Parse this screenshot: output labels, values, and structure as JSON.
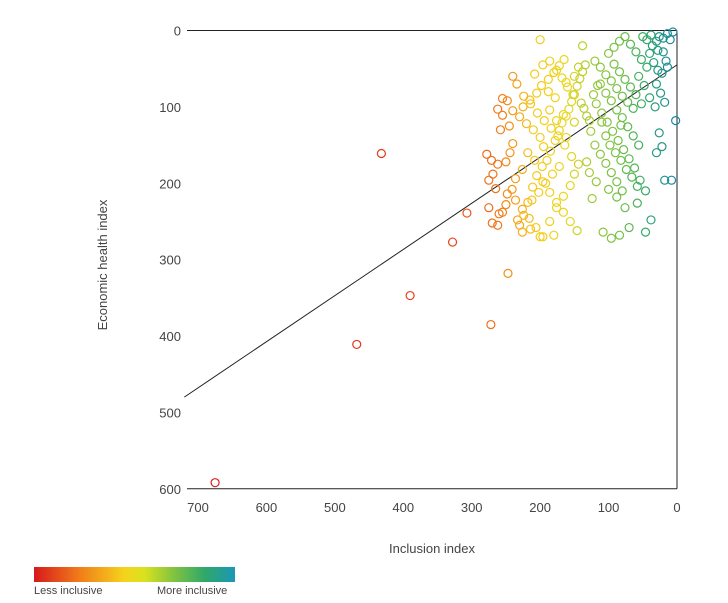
{
  "chart_data": {
    "type": "scatter",
    "title": "",
    "xlabel": "Inclusion index",
    "ylabel": "Economic health index",
    "xlim": [
      700,
      0
    ],
    "ylim": [
      0,
      600
    ],
    "x_ticks": [
      "700",
      "600",
      "500",
      "400",
      "300",
      "200",
      "100",
      "0"
    ],
    "y_ticks": [
      "0",
      "100",
      "200",
      "300",
      "400",
      "500",
      "600"
    ],
    "trend_line": {
      "x": [
        720,
        0
      ],
      "y": [
        480,
        45
      ]
    },
    "color_scale": {
      "low_label": "Less inclusive",
      "high_label": "More inclusive",
      "colors": [
        "#d7191c",
        "#f07a1a",
        "#f5d31b",
        "#d9e21f",
        "#7fc241",
        "#2fa86a",
        "#1a97b7"
      ]
    },
    "points": [
      [
        675,
        592
      ],
      [
        468,
        411
      ],
      [
        390,
        347
      ],
      [
        432,
        161
      ],
      [
        272,
        385
      ],
      [
        247,
        318
      ],
      [
        328,
        277
      ],
      [
        307,
        239
      ],
      [
        270,
        252
      ],
      [
        262,
        255
      ],
      [
        255,
        238
      ],
      [
        248,
        214
      ],
      [
        265,
        207
      ],
      [
        275,
        196
      ],
      [
        269,
        188
      ],
      [
        262,
        175
      ],
      [
        271,
        170
      ],
      [
        278,
        162
      ],
      [
        250,
        172
      ],
      [
        244,
        160
      ],
      [
        240,
        148
      ],
      [
        258,
        130
      ],
      [
        245,
        125
      ],
      [
        255,
        111
      ],
      [
        262,
        103
      ],
      [
        248,
        92
      ],
      [
        255,
        89
      ],
      [
        240,
        105
      ],
      [
        233,
        248
      ],
      [
        260,
        240
      ],
      [
        250,
        228
      ],
      [
        275,
        232
      ],
      [
        230,
        255
      ],
      [
        224,
        242
      ],
      [
        218,
        225
      ],
      [
        211,
        205
      ],
      [
        205,
        190
      ],
      [
        197,
        178
      ],
      [
        190,
        170
      ],
      [
        185,
        158
      ],
      [
        178,
        144
      ],
      [
        172,
        131
      ],
      [
        168,
        121
      ],
      [
        162,
        112
      ],
      [
        158,
        103
      ],
      [
        154,
        93
      ],
      [
        150,
        84
      ],
      [
        146,
        73
      ],
      [
        142,
        63
      ],
      [
        138,
        54
      ],
      [
        134,
        45
      ],
      [
        195,
        152
      ],
      [
        200,
        140
      ],
      [
        210,
        130
      ],
      [
        220,
        122
      ],
      [
        230,
        113
      ],
      [
        225,
        100
      ],
      [
        215,
        91
      ],
      [
        205,
        82
      ],
      [
        198,
        72
      ],
      [
        188,
        64
      ],
      [
        180,
        55
      ],
      [
        172,
        46
      ],
      [
        165,
        38
      ],
      [
        218,
        160
      ],
      [
        208,
        170
      ],
      [
        196,
        198
      ],
      [
        186,
        212
      ],
      [
        176,
        225
      ],
      [
        166,
        238
      ],
      [
        156,
        250
      ],
      [
        146,
        262
      ],
      [
        226,
        182
      ],
      [
        236,
        194
      ],
      [
        241,
        208
      ],
      [
        236,
        222
      ],
      [
        226,
        234
      ],
      [
        216,
        246
      ],
      [
        206,
        258
      ],
      [
        196,
        270
      ],
      [
        186,
        250
      ],
      [
        176,
        232
      ],
      [
        166,
        217
      ],
      [
        156,
        203
      ],
      [
        150,
        188
      ],
      [
        144,
        175
      ],
      [
        154,
        165
      ],
      [
        164,
        150
      ],
      [
        174,
        138
      ],
      [
        184,
        128
      ],
      [
        194,
        118
      ],
      [
        204,
        108
      ],
      [
        214,
        96
      ],
      [
        224,
        86
      ],
      [
        234,
        70
      ],
      [
        240,
        60
      ],
      [
        208,
        57
      ],
      [
        196,
        45
      ],
      [
        186,
        40
      ],
      [
        176,
        52
      ],
      [
        168,
        62
      ],
      [
        160,
        74
      ],
      [
        152,
        84
      ],
      [
        200,
        12
      ],
      [
        138,
        20
      ],
      [
        162,
        68
      ],
      [
        172,
        178
      ],
      [
        182,
        188
      ],
      [
        192,
        200
      ],
      [
        202,
        212
      ],
      [
        212,
        222
      ],
      [
        180,
        268
      ],
      [
        200,
        270
      ],
      [
        214,
        260
      ],
      [
        226,
        264
      ],
      [
        120,
        40
      ],
      [
        112,
        48
      ],
      [
        104,
        58
      ],
      [
        96,
        66
      ],
      [
        88,
        76
      ],
      [
        80,
        86
      ],
      [
        72,
        94
      ],
      [
        64,
        102
      ],
      [
        112,
        70
      ],
      [
        104,
        82
      ],
      [
        96,
        92
      ],
      [
        88,
        104
      ],
      [
        80,
        114
      ],
      [
        72,
        126
      ],
      [
        64,
        138
      ],
      [
        56,
        150
      ],
      [
        118,
        96
      ],
      [
        110,
        108
      ],
      [
        102,
        120
      ],
      [
        94,
        132
      ],
      [
        86,
        144
      ],
      [
        78,
        156
      ],
      [
        70,
        168
      ],
      [
        62,
        180
      ],
      [
        54,
        196
      ],
      [
        46,
        210
      ],
      [
        120,
        150
      ],
      [
        112,
        162
      ],
      [
        104,
        174
      ],
      [
        96,
        186
      ],
      [
        88,
        198
      ],
      [
        80,
        210
      ],
      [
        100,
        30
      ],
      [
        92,
        22
      ],
      [
        84,
        14
      ],
      [
        76,
        8
      ],
      [
        68,
        18
      ],
      [
        60,
        28
      ],
      [
        52,
        38
      ],
      [
        44,
        48
      ],
      [
        92,
        44
      ],
      [
        84,
        54
      ],
      [
        76,
        64
      ],
      [
        68,
        74
      ],
      [
        60,
        84
      ],
      [
        52,
        96
      ],
      [
        108,
        264
      ],
      [
        96,
        272
      ],
      [
        84,
        268
      ],
      [
        70,
        258
      ],
      [
        58,
        226
      ],
      [
        46,
        264
      ],
      [
        38,
        248
      ],
      [
        124,
        220
      ],
      [
        118,
        198
      ],
      [
        100,
        208
      ],
      [
        88,
        218
      ],
      [
        76,
        232
      ],
      [
        128,
        186
      ],
      [
        132,
        172
      ],
      [
        126,
        132
      ],
      [
        132,
        112
      ],
      [
        136,
        102
      ],
      [
        104,
        138
      ],
      [
        98,
        150
      ],
      [
        90,
        160
      ],
      [
        82,
        170
      ],
      [
        74,
        182
      ],
      [
        66,
        192
      ],
      [
        58,
        204
      ],
      [
        110,
        120
      ],
      [
        122,
        84
      ],
      [
        116,
        72
      ],
      [
        82,
        124
      ],
      [
        40,
        30
      ],
      [
        36,
        20
      ],
      [
        30,
        14
      ],
      [
        26,
        8
      ],
      [
        20,
        10
      ],
      [
        14,
        4
      ],
      [
        10,
        12
      ],
      [
        6,
        2
      ],
      [
        34,
        42
      ],
      [
        28,
        52
      ],
      [
        22,
        56
      ],
      [
        16,
        40
      ],
      [
        30,
        70
      ],
      [
        24,
        82
      ],
      [
        18,
        94
      ],
      [
        32,
        100
      ],
      [
        26,
        134
      ],
      [
        22,
        152
      ],
      [
        18,
        196
      ],
      [
        8,
        196
      ],
      [
        14,
        48
      ],
      [
        20,
        28
      ],
      [
        28,
        26
      ],
      [
        44,
        12
      ],
      [
        50,
        8
      ],
      [
        38,
        6
      ],
      [
        2,
        118
      ],
      [
        30,
        160
      ],
      [
        40,
        88
      ],
      [
        48,
        72
      ],
      [
        56,
        60
      ],
      [
        150,
        120
      ],
      [
        162,
        140
      ],
      [
        140,
        95
      ],
      [
        128,
        118
      ],
      [
        150,
        60
      ],
      [
        144,
        48
      ],
      [
        188,
        80
      ],
      [
        178,
        88
      ],
      [
        166,
        110
      ],
      [
        176,
        118
      ],
      [
        186,
        104
      ]
    ]
  }
}
